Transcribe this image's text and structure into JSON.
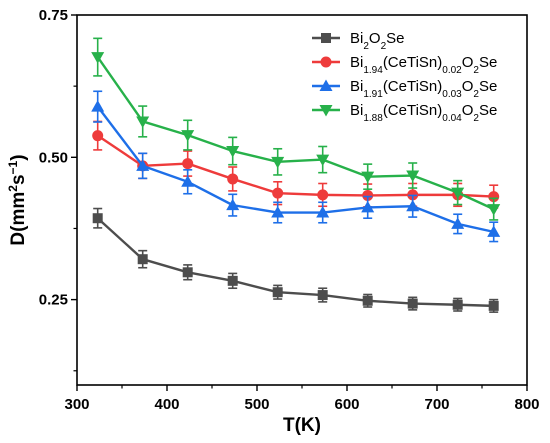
{
  "chart_data": {
    "type": "line",
    "xlabel": "T(K)",
    "ylabel_parts": [
      {
        "text": "D(mm",
        "shift": "base"
      },
      {
        "text": "2",
        "shift": "super"
      },
      {
        "text": "s",
        "shift": "base"
      },
      {
        "text": "−1",
        "shift": "super"
      },
      {
        "text": ")",
        "shift": "base"
      }
    ],
    "xlim": [
      300,
      800
    ],
    "ylim": [
      0.1,
      0.75
    ],
    "x_ticks": [
      300,
      400,
      500,
      600,
      700,
      800
    ],
    "y_ticks": [
      0.25,
      0.5,
      0.75
    ],
    "y_tick_labels": [
      "0.25",
      "0.50",
      "0.75"
    ],
    "grid": false,
    "legend_position": "top-right",
    "x": [
      323,
      373,
      423,
      473,
      523,
      573,
      623,
      673,
      723,
      763
    ],
    "series": [
      {
        "name": "Bi2O2Se",
        "name_parts": [
          {
            "text": "Bi",
            "shift": "base"
          },
          {
            "text": "2",
            "shift": "sub"
          },
          {
            "text": "O",
            "shift": "base"
          },
          {
            "text": "2",
            "shift": "sub"
          },
          {
            "text": "Se",
            "shift": "base"
          }
        ],
        "color": "#4d4d4d",
        "marker": "square",
        "values": [
          0.393,
          0.321,
          0.298,
          0.283,
          0.263,
          0.258,
          0.248,
          0.243,
          0.241,
          0.239
        ],
        "errors": [
          0.017,
          0.015,
          0.013,
          0.013,
          0.012,
          0.012,
          0.011,
          0.011,
          0.011,
          0.011
        ]
      },
      {
        "name": "Bi1.94(CeTiSn)0.02O2Se",
        "name_parts": [
          {
            "text": "Bi",
            "shift": "base"
          },
          {
            "text": "1.94",
            "shift": "sub"
          },
          {
            "text": "(CeTiSn)",
            "shift": "base"
          },
          {
            "text": "0.02",
            "shift": "sub"
          },
          {
            "text": "O",
            "shift": "base"
          },
          {
            "text": "2",
            "shift": "sub"
          },
          {
            "text": "Se",
            "shift": "base"
          }
        ],
        "color": "#ee3b3b",
        "marker": "circle",
        "values": [
          0.538,
          0.485,
          0.489,
          0.462,
          0.437,
          0.434,
          0.433,
          0.434,
          0.434,
          0.431
        ],
        "errors": [
          0.025,
          0.022,
          0.022,
          0.021,
          0.02,
          0.02,
          0.02,
          0.02,
          0.02,
          0.02
        ]
      },
      {
        "name": "Bi1.91(CeTiSn)0.03O2Se",
        "name_parts": [
          {
            "text": "Bi",
            "shift": "base"
          },
          {
            "text": "1.91",
            "shift": "sub"
          },
          {
            "text": "(CeTiSn)",
            "shift": "base"
          },
          {
            "text": "0.03",
            "shift": "sub"
          },
          {
            "text": "O",
            "shift": "base"
          },
          {
            "text": "2",
            "shift": "sub"
          },
          {
            "text": "Se",
            "shift": "base"
          }
        ],
        "color": "#1e6fe8",
        "marker": "triangle-up",
        "values": [
          0.589,
          0.485,
          0.457,
          0.416,
          0.403,
          0.403,
          0.412,
          0.414,
          0.383,
          0.369
        ],
        "errors": [
          0.027,
          0.022,
          0.021,
          0.019,
          0.018,
          0.018,
          0.019,
          0.019,
          0.017,
          0.017
        ]
      },
      {
        "name": "Bi1.88(CeTiSn)0.04O2Se",
        "name_parts": [
          {
            "text": "Bi",
            "shift": "base"
          },
          {
            "text": "1.88",
            "shift": "sub"
          },
          {
            "text": "(CeTiSn)",
            "shift": "base"
          },
          {
            "text": "0.04",
            "shift": "sub"
          },
          {
            "text": "O",
            "shift": "base"
          },
          {
            "text": "2",
            "shift": "sub"
          },
          {
            "text": "Se",
            "shift": "base"
          }
        ],
        "color": "#27b14a",
        "marker": "triangle-down",
        "values": [
          0.676,
          0.563,
          0.539,
          0.511,
          0.492,
          0.496,
          0.466,
          0.468,
          0.438,
          0.409
        ],
        "errors": [
          0.033,
          0.027,
          0.026,
          0.024,
          0.023,
          0.023,
          0.022,
          0.022,
          0.021,
          0.019
        ]
      }
    ]
  }
}
